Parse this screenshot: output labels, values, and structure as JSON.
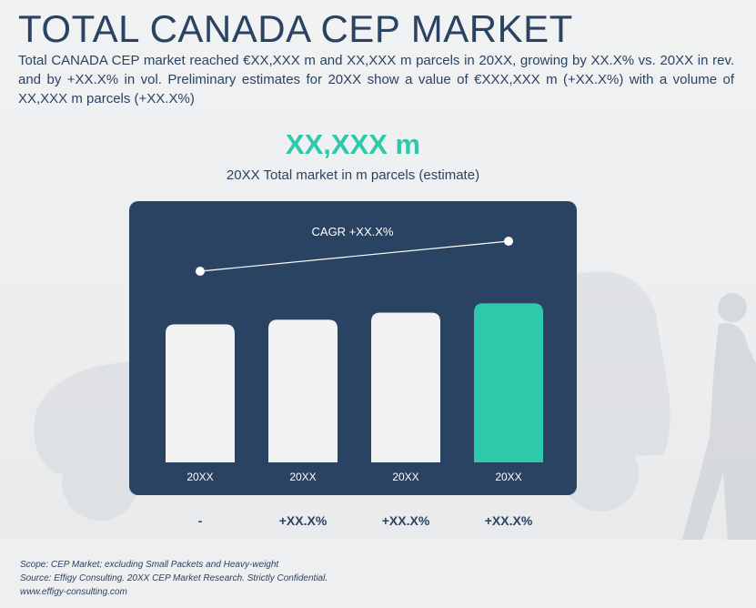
{
  "title": "TOTAL CANADA CEP MARKET",
  "summary": "Total CANADA CEP market reached €XX,XXX m and XX,XXX m parcels in 20XX, growing by XX.X% vs. 20XX in rev. and by +XX.X% in vol. Preliminary estimates for 20XX show a value of €XXX,XXX m (+XX.X%) with a volume of XX,XXX m parcels (+XX.X%)",
  "headline": {
    "value": "XX,XXX m",
    "caption": "20XX Total market in m parcels (estimate)"
  },
  "colors": {
    "title": "#2b4362",
    "panel": "#2a4363",
    "bar_default": "#f2f2f3",
    "bar_highlight": "#2dc9aa",
    "accent": "#2dc9aa"
  },
  "chart_data": {
    "type": "bar",
    "categories": [
      "20XX",
      "20XX",
      "20XX",
      "20XX"
    ],
    "values": [
      59,
      61,
      64,
      68
    ],
    "ylim": [
      0,
      100
    ],
    "highlight_index": 3,
    "cagr_label": "CAGR +XX.X%",
    "grid": false
  },
  "growth_labels": [
    "-",
    "+XX.X%",
    "+XX.X%",
    "+XX.X%"
  ],
  "footnotes": {
    "scope": "Scope: CEP Market; excluding Small Packets and Heavy-weight",
    "source": "Source: Effigy Consulting. 20XX CEP Market Research. Strictly Confidential.",
    "website": "www.effigy-consulting.com"
  }
}
